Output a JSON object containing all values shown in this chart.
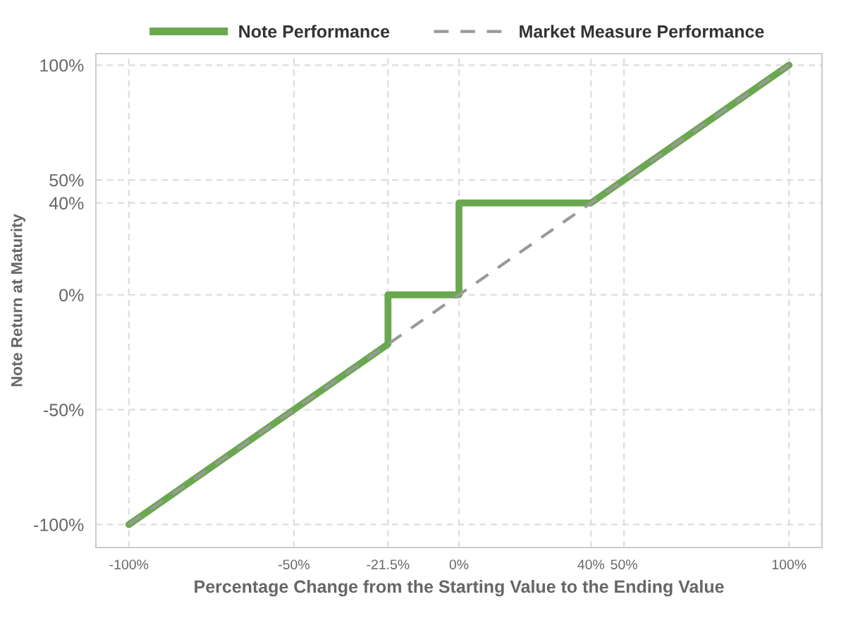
{
  "chart_data": {
    "type": "line",
    "xlabel": "Percentage Change from the Starting Value to the Ending Value",
    "ylabel": "Note Return at Maturity",
    "series": [
      {
        "name": "Market Measure Performance",
        "color": "#999999",
        "line_style": "dashed",
        "x": [
          -100,
          100
        ],
        "values": [
          -100,
          100
        ]
      },
      {
        "name": "Note Performance",
        "color": "#6aa84f",
        "line_style": "solid",
        "x": [
          -100,
          -21.5,
          -21.5,
          0,
          0,
          40,
          100
        ],
        "values": [
          -100,
          -21.5,
          0,
          0,
          40,
          40,
          100
        ]
      }
    ],
    "xlim": [
      -110,
      110
    ],
    "ylim": [
      -110,
      105
    ],
    "xticks": [
      {
        "value": -100,
        "label": "-100%"
      },
      {
        "value": -50,
        "label": "-50%"
      },
      {
        "value": -21.5,
        "label": "-21.5%"
      },
      {
        "value": 0,
        "label": "0%"
      },
      {
        "value": 40,
        "label": "40%"
      },
      {
        "value": 50,
        "label": "50%"
      },
      {
        "value": 100,
        "label": "100%"
      }
    ],
    "yticks": [
      {
        "value": -100,
        "label": "-100%"
      },
      {
        "value": -50,
        "label": "-50%"
      },
      {
        "value": 0,
        "label": "0%"
      },
      {
        "value": 40,
        "label": "40%"
      },
      {
        "value": 50,
        "label": "50%"
      },
      {
        "value": 100,
        "label": "100%"
      }
    ],
    "grid": true,
    "legend": "top",
    "marker": "none"
  }
}
